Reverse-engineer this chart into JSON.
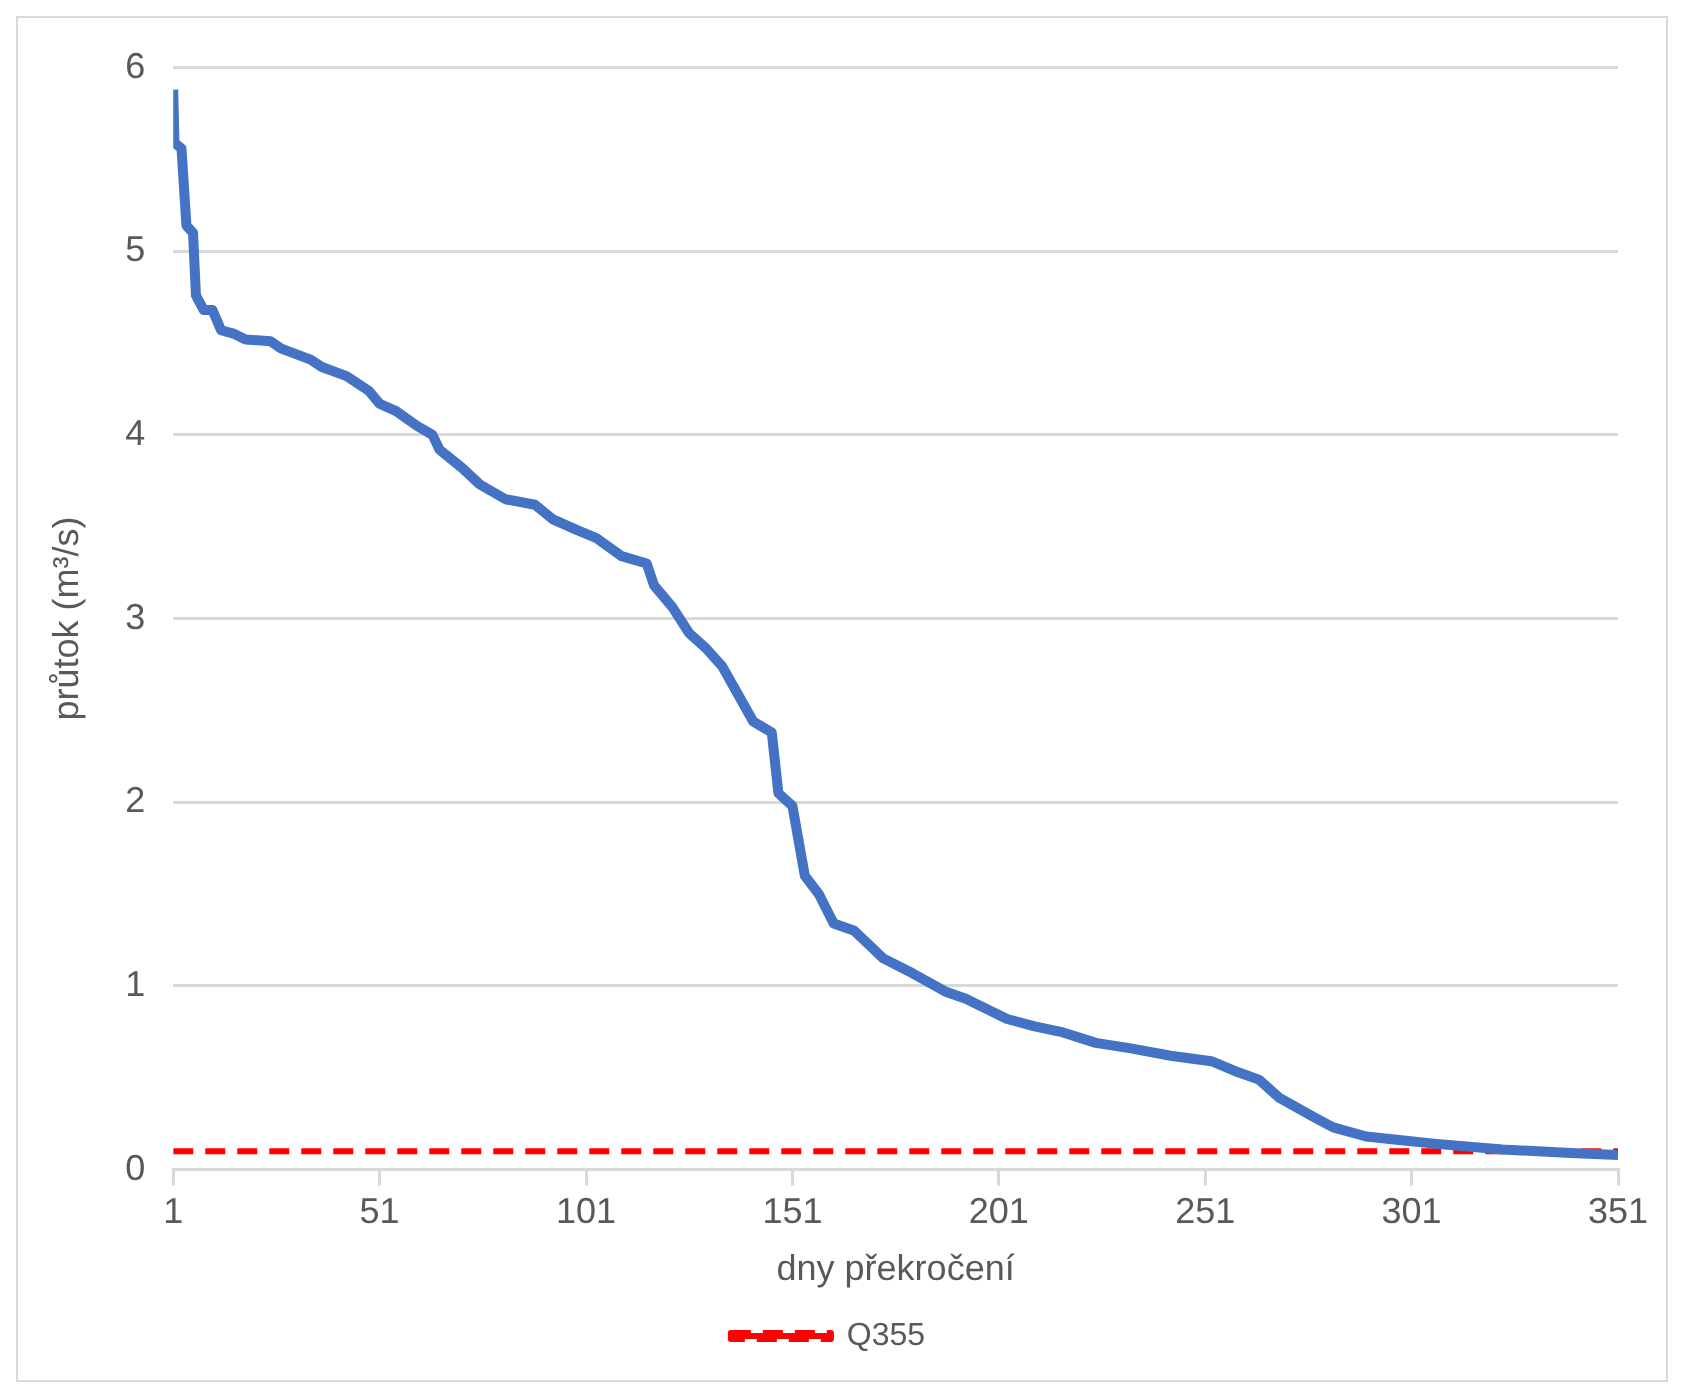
{
  "chart_data": {
    "type": "line",
    "xlabel": "dny překročení",
    "ylabel": "průtok (m³/s)",
    "xlim": [
      1,
      351
    ],
    "xticks": [
      1,
      51,
      101,
      151,
      201,
      251,
      301,
      351
    ],
    "ylim": [
      0,
      6
    ],
    "yticks": [
      0,
      1,
      2,
      3,
      4,
      5,
      6
    ],
    "grid": "y",
    "legend": "bottom",
    "marker": "none",
    "series": [
      {
        "color": "#4472c4",
        "line_style": "solid",
        "x": [
          1,
          1.3,
          3,
          4.2,
          5.8,
          6.5,
          8.4,
          10.5,
          12.6,
          15.8,
          18.5,
          24.6,
          27.2,
          34.3,
          37,
          43,
          48.4,
          51,
          55,
          60,
          63.8,
          65.5,
          71,
          75.3,
          81.5,
          88.6,
          93,
          99,
          103.4,
          109.6,
          115.7,
          117.5,
          122,
          126,
          130,
          134,
          138,
          141.5,
          146,
          147.6,
          151,
          154,
          157.4,
          161,
          166,
          173,
          180,
          188,
          193,
          203,
          209.7,
          216,
          224.5,
          233,
          242.6,
          252.5,
          259,
          264,
          269,
          277,
          282,
          290,
          298.5,
          307,
          323,
          339.5,
          351
        ],
        "values": [
          5.88,
          5.59,
          5.56,
          5.14,
          5.1,
          4.76,
          4.68,
          4.68,
          4.57,
          4.55,
          4.52,
          4.51,
          4.47,
          4.41,
          4.37,
          4.32,
          4.24,
          4.17,
          4.13,
          4.05,
          4.0,
          3.92,
          3.82,
          3.73,
          3.65,
          3.62,
          3.54,
          3.48,
          3.44,
          3.34,
          3.3,
          3.18,
          3.06,
          2.92,
          2.84,
          2.74,
          2.58,
          2.44,
          2.38,
          2.05,
          1.98,
          1.6,
          1.5,
          1.34,
          1.3,
          1.15,
          1.07,
          0.97,
          0.93,
          0.82,
          0.78,
          0.75,
          0.69,
          0.66,
          0.62,
          0.59,
          0.53,
          0.49,
          0.39,
          0.29,
          0.23,
          0.18,
          0.16,
          0.14,
          0.11,
          0.09,
          0.08
        ]
      },
      {
        "name": "Q355",
        "color": "#ff0000",
        "line_style": "dashed",
        "x": [
          1,
          351
        ],
        "values": [
          0.1,
          0.1
        ]
      }
    ]
  }
}
